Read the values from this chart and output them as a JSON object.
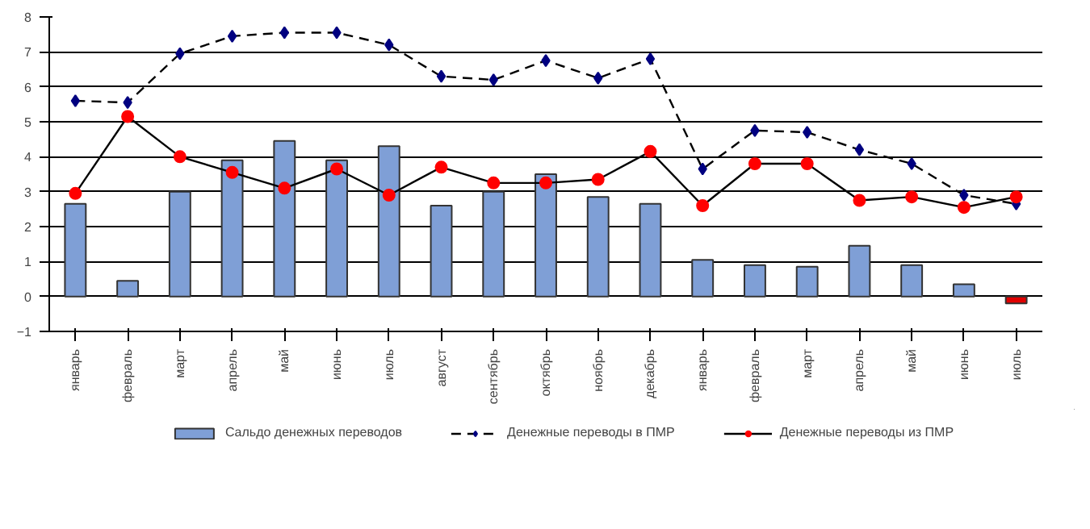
{
  "chart_data": {
    "type": "bar",
    "categories": [
      "январь",
      "февраль",
      "март",
      "апрель",
      "май",
      "июнь",
      "июль",
      "август",
      "сентябрь",
      "октябрь",
      "ноябрь",
      "декабрь",
      "январь",
      "февраль",
      "март",
      "апрель",
      "май",
      "июнь",
      "июль"
    ],
    "series": [
      {
        "name": "Сальдо денежных переводов",
        "color": "#7f9fd6",
        "colors": [
          "#7f9fd6",
          "#7f9fd6",
          "#7f9fd6",
          "#7f9fd6",
          "#7f9fd6",
          "#7f9fd6",
          "#7f9fd6",
          "#7f9fd6",
          "#7f9fd6",
          "#7f9fd6",
          "#7f9fd6",
          "#7f9fd6",
          "#7f9fd6",
          "#7f9fd6",
          "#7f9fd6",
          "#7f9fd6",
          "#7f9fd6",
          "#7f9fd6",
          "#e00000"
        ],
        "values": [
          2.65,
          0.45,
          3.0,
          3.9,
          4.45,
          3.9,
          4.3,
          2.6,
          3.0,
          3.5,
          2.85,
          2.65,
          1.05,
          0.9,
          0.85,
          1.45,
          0.9,
          0.35,
          -0.2
        ]
      },
      {
        "name": "Денежные переводы в ПМР",
        "type": "line",
        "color": "#000080",
        "line_style": "dashed",
        "marker": "diamond",
        "values": [
          5.6,
          5.55,
          6.95,
          7.45,
          7.55,
          7.55,
          7.2,
          6.3,
          6.2,
          6.75,
          6.25,
          6.8,
          3.65,
          4.75,
          4.7,
          4.2,
          3.8,
          2.9,
          2.65
        ]
      },
      {
        "name": "Денежные переводы из ПМР",
        "type": "line",
        "color": "#ff0000",
        "line_style": "solid",
        "marker": "circle",
        "values": [
          2.95,
          5.15,
          4.0,
          3.55,
          3.1,
          3.65,
          2.9,
          3.7,
          3.25,
          3.25,
          3.35,
          4.15,
          2.6,
          3.8,
          3.8,
          2.75,
          2.85,
          2.55,
          2.85
        ]
      }
    ],
    "ylim": [
      -1,
      8
    ],
    "yticks": [
      -1,
      0,
      1,
      2,
      3,
      4,
      5,
      6,
      7,
      8
    ],
    "grid": "y",
    "legend": "bottom"
  }
}
